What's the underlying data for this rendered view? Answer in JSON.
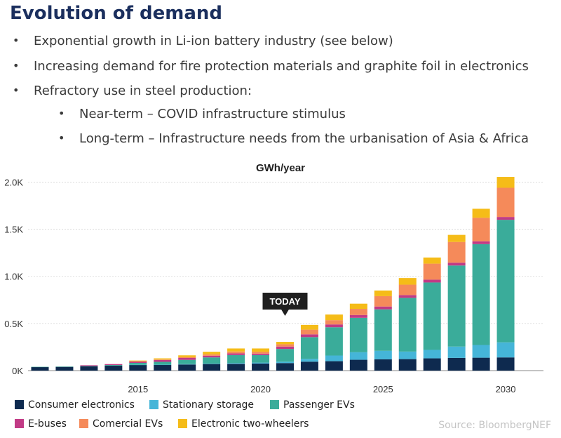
{
  "page": {
    "title": "Evolution of demand",
    "bullets": [
      "Exponential growth in Li-ion battery industry (see below)",
      "Increasing demand for fire protection materials and graphite foil in electronics",
      "Refractory use in steel production:"
    ],
    "sub_bullets": [
      "Near-term – COVID infrastructure stimulus",
      "Long-term – Infrastructure needs from the urbanisation of Asia & Africa"
    ],
    "bullet_symbol": "•",
    "source": "Source: BloombergNEF"
  },
  "chart_data": {
    "type": "bar",
    "stacked": true,
    "title": "GWh/year",
    "x": [
      2011,
      2012,
      2013,
      2014,
      2015,
      2016,
      2017,
      2018,
      2019,
      2020,
      2021,
      2022,
      2023,
      2024,
      2025,
      2026,
      2027,
      2028,
      2029,
      2030
    ],
    "xticks": [
      2015,
      2020,
      2025,
      2030
    ],
    "yticks": [
      0,
      500,
      1000,
      1500,
      2000
    ],
    "ytick_labels": [
      "0K",
      "0.5K",
      "1.0K",
      "1.5K",
      "2.0K"
    ],
    "ylim": [
      0,
      2100
    ],
    "grid": true,
    "annotation": {
      "label": "TODAY",
      "x": 2021
    },
    "series": [
      {
        "name": "Consumer electronics",
        "color": "#0e2a4f",
        "values": [
          38,
          40,
          45,
          52,
          60,
          60,
          65,
          70,
          72,
          75,
          80,
          95,
          100,
          115,
          120,
          122,
          130,
          135,
          137,
          140
        ]
      },
      {
        "name": "Stationary storage",
        "color": "#45b5d8",
        "values": [
          0,
          0,
          0,
          0,
          2,
          3,
          4,
          5,
          8,
          10,
          15,
          30,
          60,
          80,
          90,
          80,
          90,
          120,
          135,
          160
        ]
      },
      {
        "name": "Passenger EVs",
        "color": "#3aac9a",
        "values": [
          2,
          3,
          4,
          7,
          20,
          30,
          45,
          65,
          85,
          80,
          135,
          230,
          300,
          365,
          440,
          570,
          715,
          860,
          1070,
          1300
        ]
      },
      {
        "name": "E-buses",
        "color": "#c13a85",
        "values": [
          0,
          0,
          8,
          10,
          15,
          20,
          20,
          18,
          18,
          15,
          25,
          30,
          30,
          30,
          30,
          30,
          30,
          30,
          30,
          30
        ]
      },
      {
        "name": "Comercial EVs",
        "color": "#f58a5a",
        "values": [
          0,
          0,
          0,
          0,
          2,
          5,
          10,
          15,
          20,
          20,
          25,
          50,
          45,
          65,
          110,
          110,
          170,
          220,
          250,
          310
        ]
      },
      {
        "name": "Electronic two-wheelers",
        "color": "#f5bc18",
        "values": [
          0,
          0,
          0,
          0,
          8,
          12,
          18,
          27,
          32,
          35,
          25,
          50,
          60,
          55,
          60,
          70,
          65,
          75,
          95,
          115
        ]
      }
    ]
  }
}
